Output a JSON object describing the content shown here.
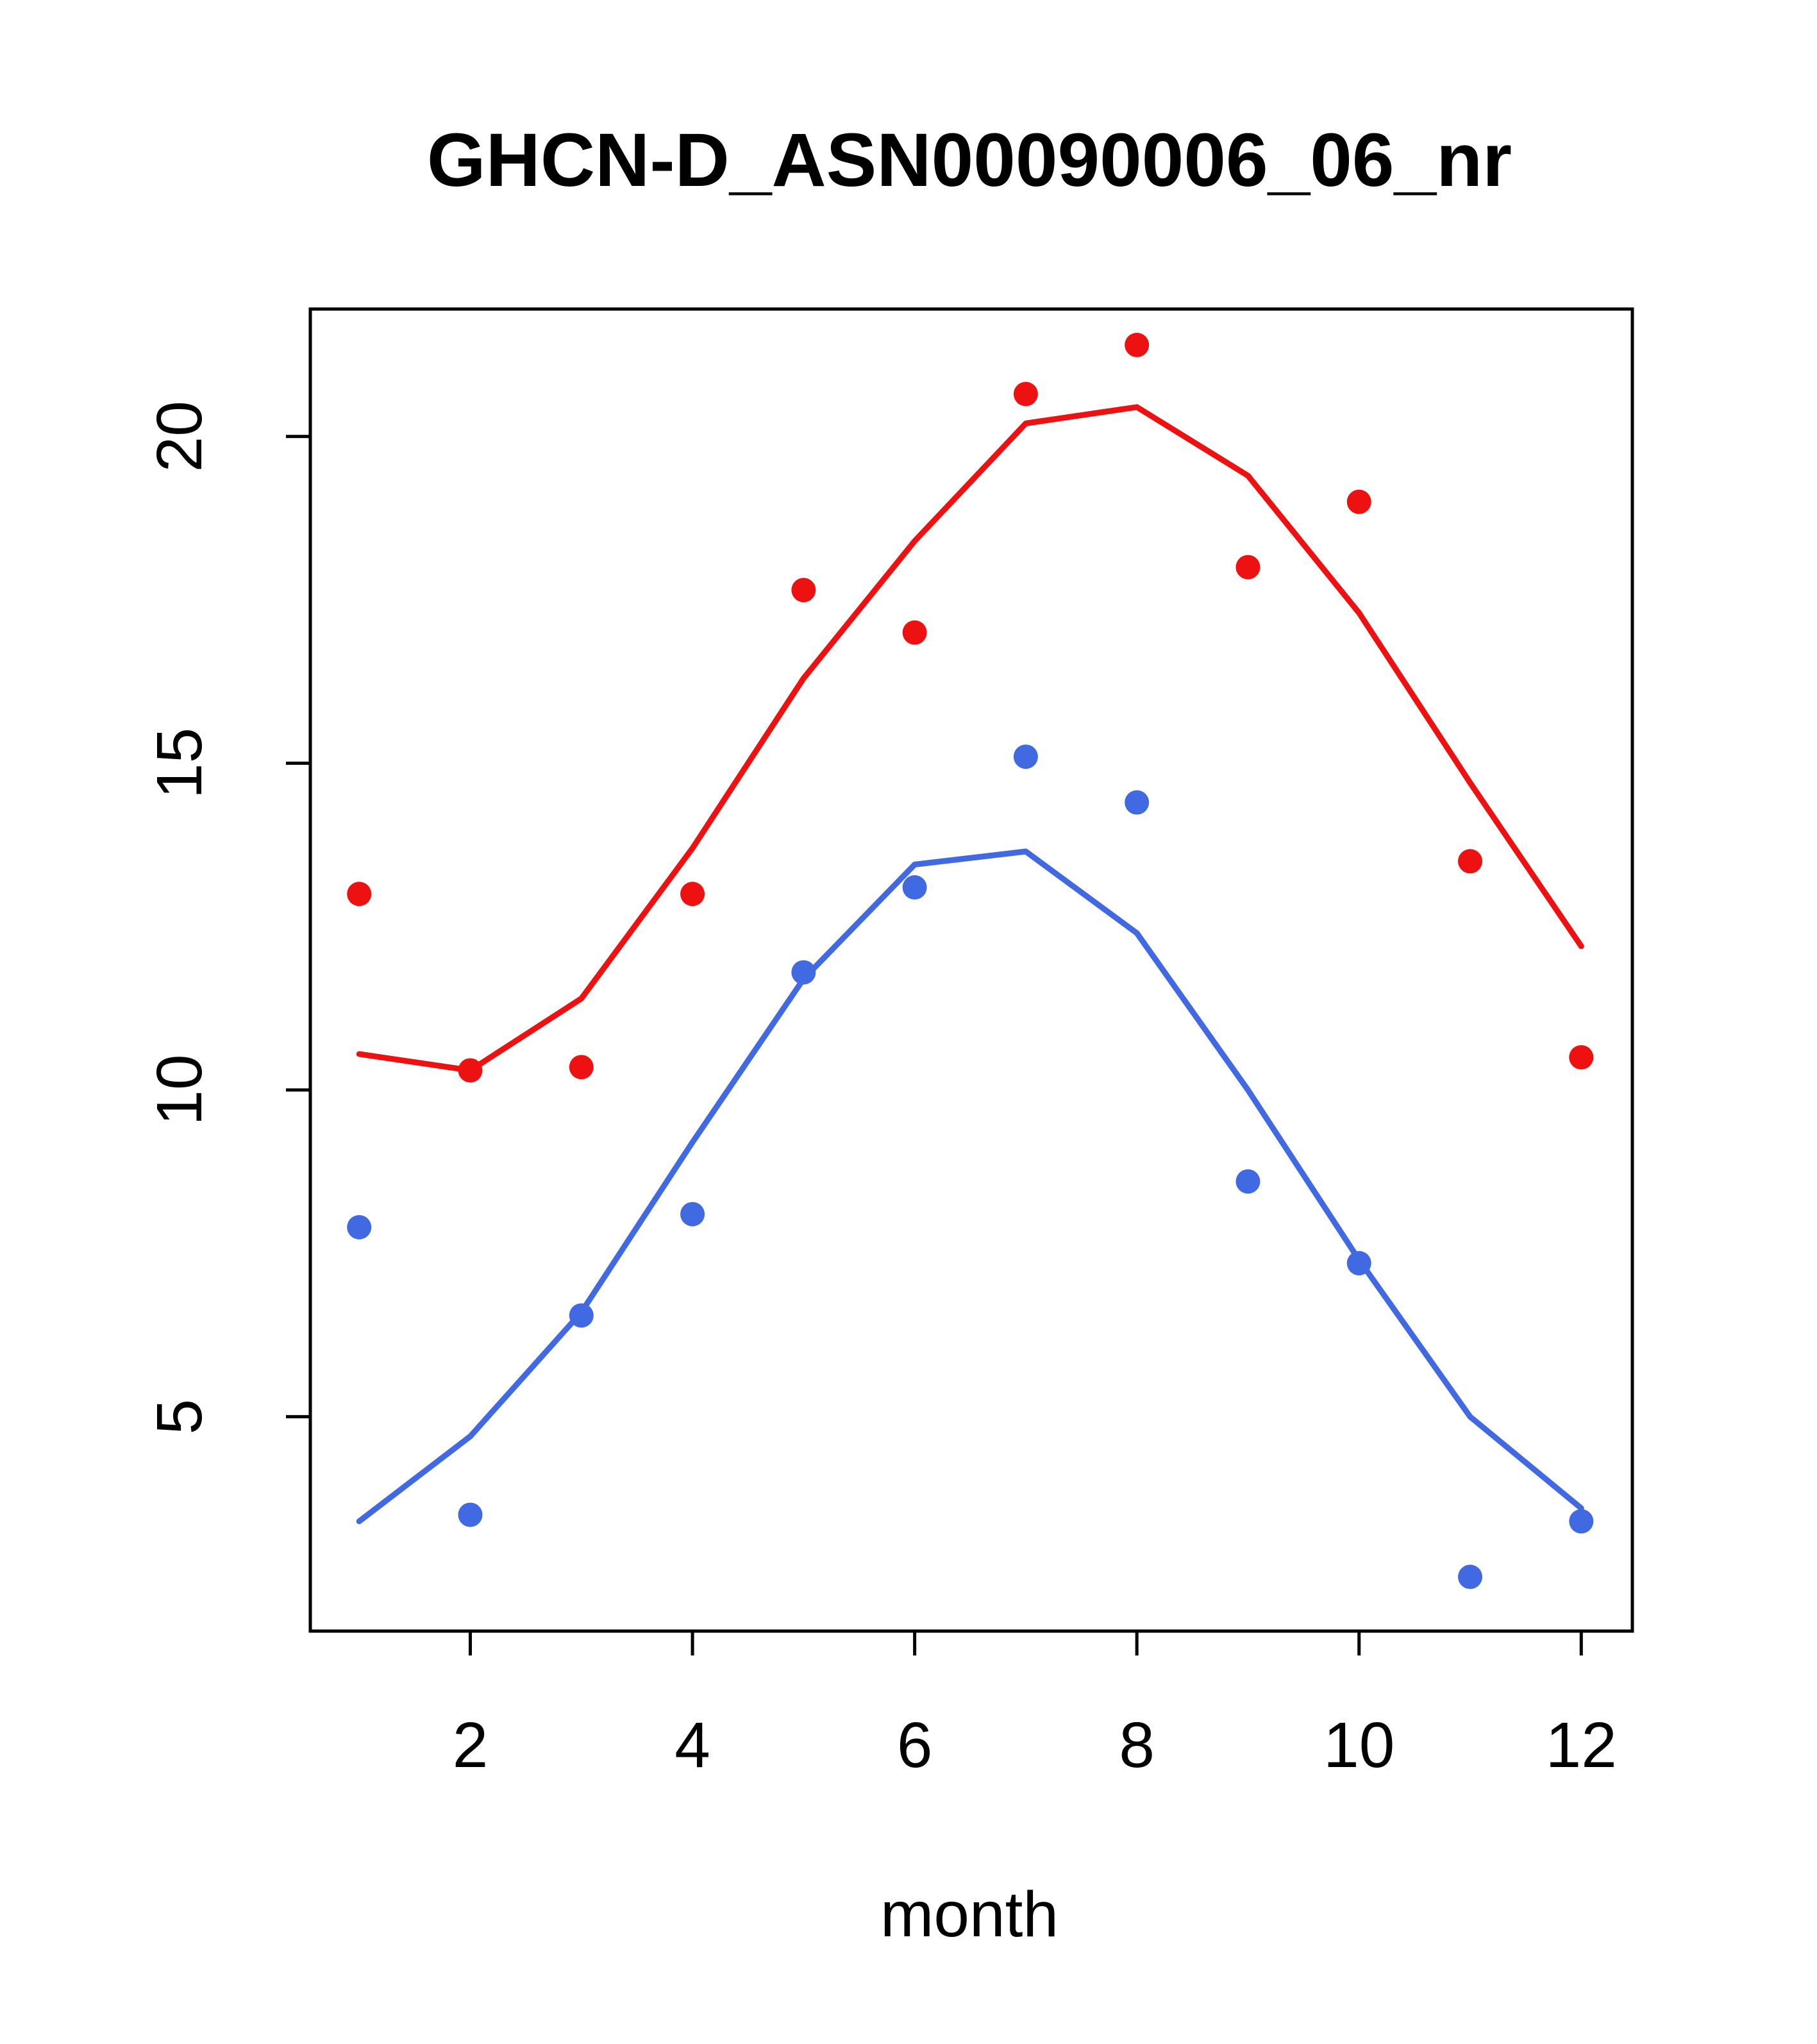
{
  "chart_data": {
    "type": "scatter",
    "title": "GHCN-D_ASN00090006_06_nr",
    "xlabel": "month",
    "ylabel": "",
    "x": [
      1,
      2,
      3,
      4,
      5,
      6,
      7,
      8,
      9,
      10,
      11,
      12
    ],
    "xlim": [
      0.56,
      12.46
    ],
    "ylim": [
      1.72,
      21.95
    ],
    "xticks": [
      2,
      4,
      6,
      8,
      10,
      12
    ],
    "yticks": [
      5,
      10,
      15,
      20
    ],
    "grid": false,
    "frame": true,
    "colors": {
      "red": "#ee1111",
      "blue": "#4169e1"
    },
    "series": [
      {
        "name": "red-line",
        "draw": "line",
        "color": "#ee1111",
        "values": [
          10.55,
          10.3,
          11.4,
          13.7,
          16.3,
          18.4,
          20.2,
          20.45,
          19.4,
          17.3,
          14.7,
          12.2
        ]
      },
      {
        "name": "blue-line",
        "draw": "line",
        "color": "#4169e1",
        "values": [
          3.4,
          4.7,
          6.6,
          9.2,
          11.7,
          13.45,
          13.65,
          12.4,
          10.0,
          7.4,
          5.0,
          3.6
        ]
      },
      {
        "name": "red-points",
        "draw": "points",
        "color": "#ee1111",
        "values": [
          13.0,
          10.3,
          10.35,
          13.0,
          17.65,
          17.0,
          20.65,
          21.4,
          18.0,
          19.0,
          13.5,
          10.5
        ]
      },
      {
        "name": "blue-points",
        "draw": "points",
        "color": "#4169e1",
        "values": [
          7.9,
          3.5,
          6.55,
          8.1,
          11.8,
          13.1,
          15.1,
          14.4,
          8.6,
          7.35,
          2.55,
          3.4
        ]
      }
    ]
  }
}
